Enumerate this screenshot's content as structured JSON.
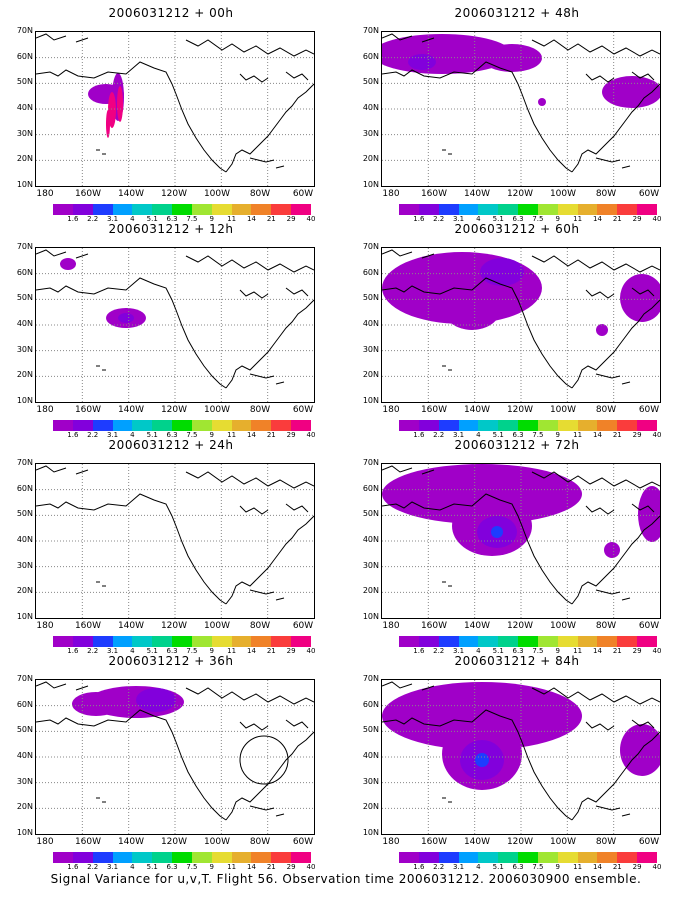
{
  "caption": "Signal Variance for u,v,T. Flight 56. Observation time 2006031212. 2006030900 ensemble.",
  "panels": [
    {
      "title": "2006031212 + 00h",
      "key": "p00"
    },
    {
      "title": "2006031212 + 48h",
      "key": "p48"
    },
    {
      "title": "2006031212 + 12h",
      "key": "p12"
    },
    {
      "title": "2006031212 + 60h",
      "key": "p60"
    },
    {
      "title": "2006031212 + 24h",
      "key": "p24"
    },
    {
      "title": "2006031212 + 72h",
      "key": "p72"
    },
    {
      "title": "2006031212 + 36h",
      "key": "p36"
    },
    {
      "title": "2006031212 + 84h",
      "key": "p84"
    }
  ],
  "lat_labels": [
    "70N",
    "60N",
    "50N",
    "40N",
    "30N",
    "20N",
    "10N"
  ],
  "lon_labels": [
    "180",
    "160W",
    "140W",
    "120W",
    "100W",
    "80W",
    "60W"
  ],
  "colorbar": {
    "labels": [
      "1.6",
      "2.2",
      "3.1",
      "4",
      "5.1",
      "6.3",
      "7.5",
      "9",
      "11",
      "14",
      "21",
      "29",
      "40"
    ],
    "colors": [
      "#a000c8",
      "#8200dc",
      "#1e3cff",
      "#00a0ff",
      "#00c8c8",
      "#00d28c",
      "#00dc00",
      "#a0e632",
      "#e6dc32",
      "#e6af2d",
      "#f08228",
      "#fa3c3c",
      "#f00082"
    ]
  }
}
